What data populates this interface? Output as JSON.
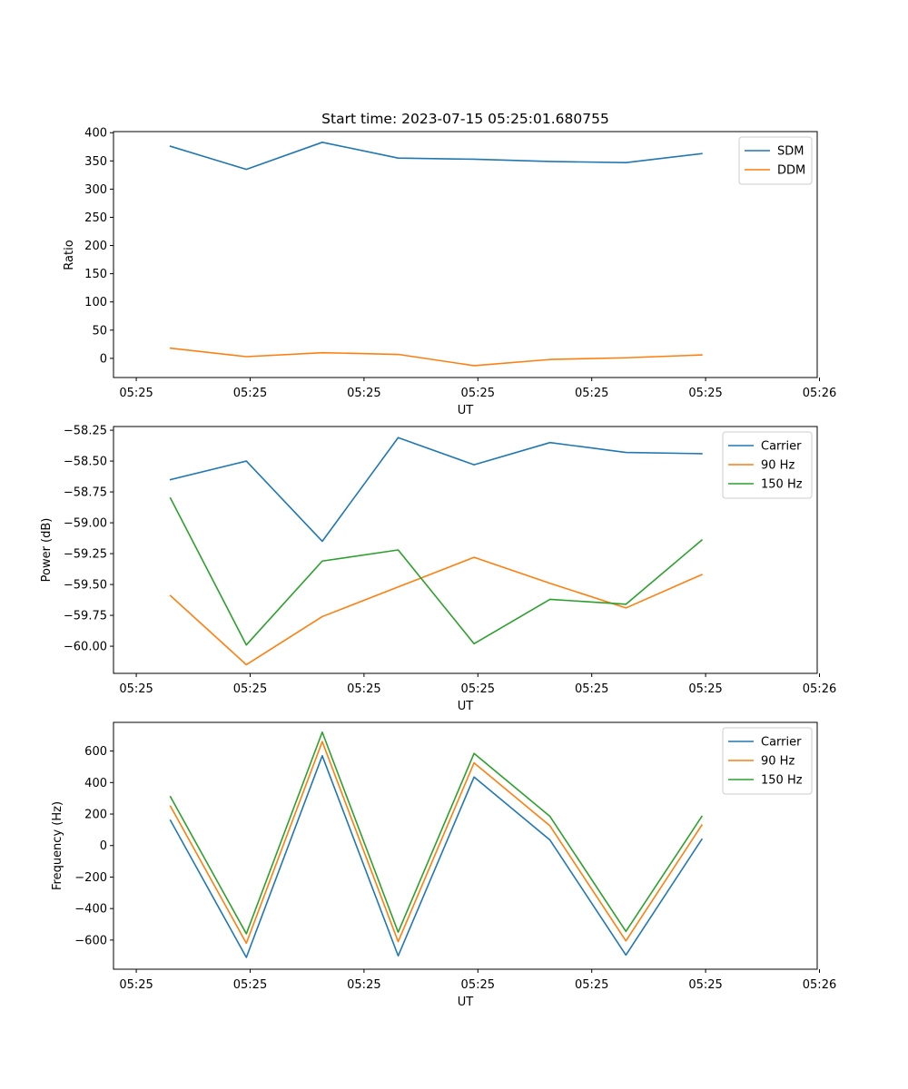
{
  "chart_data": [
    {
      "type": "line",
      "title": "Start time: 2023-07-15 05:25:01.680755",
      "xlabel": "UT",
      "ylabel": "Ratio",
      "xlim": [
        -0.3,
        8.97
      ],
      "ylim": [
        -34,
        402
      ],
      "x": [
        0.45,
        1.45,
        2.45,
        3.45,
        4.45,
        5.45,
        6.45,
        7.45
      ],
      "xticks": [
        0,
        1.5,
        3,
        4.5,
        6,
        7.5,
        9
      ],
      "xtick_labels": [
        "05:25",
        "05:25",
        "05:25",
        "05:25",
        "05:25",
        "05:25",
        "05:26"
      ],
      "yticks": [
        0,
        50,
        100,
        150,
        200,
        250,
        300,
        350,
        400
      ],
      "ytick_labels": [
        "0",
        "50",
        "100",
        "150",
        "200",
        "250",
        "300",
        "350",
        "400"
      ],
      "legend": "top-right",
      "series": [
        {
          "name": "SDM",
          "color": "#1f77b4",
          "values": [
            376,
            335,
            383,
            355,
            353,
            349,
            347,
            363
          ]
        },
        {
          "name": "DDM",
          "color": "#ff7f0e",
          "values": [
            18,
            3,
            10,
            7,
            -13,
            -2,
            1,
            6
          ]
        }
      ]
    },
    {
      "type": "line",
      "title": "",
      "xlabel": "UT",
      "ylabel": "Power (dB)",
      "xlim": [
        -0.3,
        8.97
      ],
      "ylim": [
        -60.22,
        -58.22
      ],
      "x": [
        0.45,
        1.45,
        2.45,
        3.45,
        4.45,
        5.45,
        6.45,
        7.45
      ],
      "xticks": [
        0,
        1.5,
        3,
        4.5,
        6,
        7.5,
        9
      ],
      "xtick_labels": [
        "05:25",
        "05:25",
        "05:25",
        "05:25",
        "05:25",
        "05:25",
        "05:26"
      ],
      "yticks": [
        -60.0,
        -59.75,
        -59.5,
        -59.25,
        -59.0,
        -58.75,
        -58.5,
        -58.25
      ],
      "ytick_labels": [
        "−60.00",
        "−59.75",
        "−59.50",
        "−59.25",
        "−59.00",
        "−58.75",
        "−58.50",
        "−58.25"
      ],
      "legend": "top-right",
      "series": [
        {
          "name": "Carrier",
          "color": "#1f77b4",
          "values": [
            -58.65,
            -58.5,
            -59.15,
            -58.31,
            -58.53,
            -58.35,
            -58.43,
            -58.44
          ]
        },
        {
          "name": "90 Hz",
          "color": "#ff7f0e",
          "values": [
            -59.59,
            -60.15,
            -59.76,
            -59.52,
            -59.28,
            -59.49,
            -59.69,
            -59.42
          ]
        },
        {
          "name": "150 Hz",
          "color": "#2ca02c",
          "values": [
            -58.8,
            -59.99,
            -59.31,
            -59.22,
            -59.98,
            -59.62,
            -59.66,
            -59.14
          ]
        }
      ]
    },
    {
      "type": "line",
      "title": "",
      "xlabel": "UT",
      "ylabel": "Frequency (Hz)",
      "xlim": [
        -0.3,
        8.97
      ],
      "ylim": [
        -785,
        782
      ],
      "x": [
        0.45,
        1.45,
        2.45,
        3.45,
        4.45,
        5.45,
        6.45,
        7.45
      ],
      "xticks": [
        0,
        1.5,
        3,
        4.5,
        6,
        7.5,
        9
      ],
      "xtick_labels": [
        "05:25",
        "05:25",
        "05:25",
        "05:25",
        "05:25",
        "05:25",
        "05:26"
      ],
      "yticks": [
        -600,
        -400,
        -200,
        0,
        200,
        400,
        600
      ],
      "ytick_labels": [
        "−600",
        "−400",
        "−200",
        "0",
        "200",
        "400",
        "600"
      ],
      "legend": "top-right",
      "series": [
        {
          "name": "Carrier",
          "color": "#1f77b4",
          "values": [
            160,
            -710,
            570,
            -700,
            435,
            35,
            -695,
            40
          ]
        },
        {
          "name": "90 Hz",
          "color": "#ff7f0e",
          "values": [
            250,
            -620,
            660,
            -610,
            525,
            125,
            -605,
            130
          ]
        },
        {
          "name": "150 Hz",
          "color": "#2ca02c",
          "values": [
            310,
            -560,
            720,
            -550,
            585,
            185,
            -545,
            185
          ]
        }
      ]
    }
  ]
}
